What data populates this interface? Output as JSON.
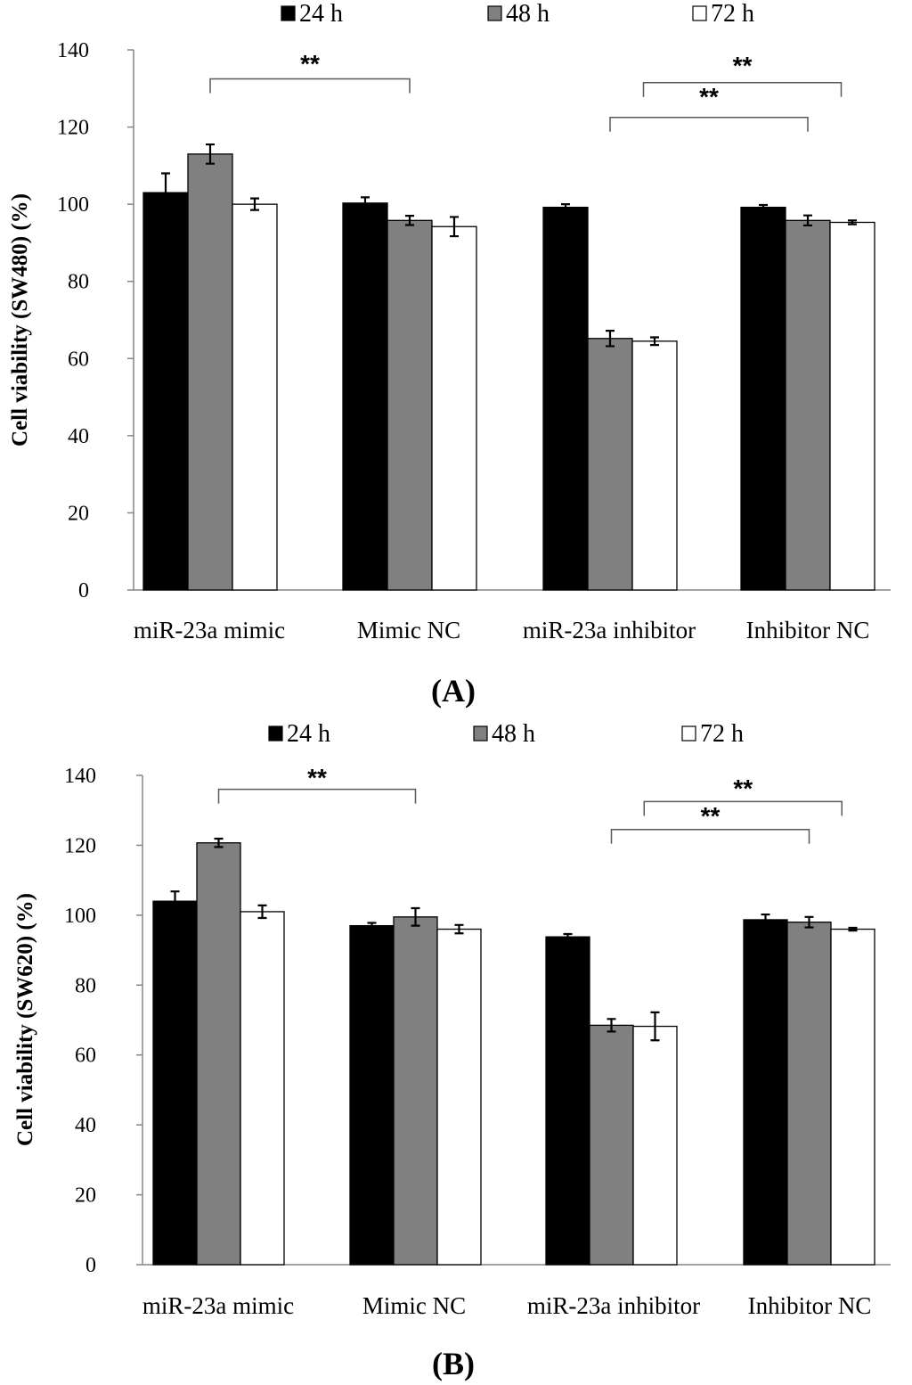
{
  "chart_data": [
    {
      "type": "bar",
      "panel_label": "(A)",
      "ylabel": "Cell viability (SW480) (%)",
      "xlabel": "",
      "ylim": [
        0,
        140
      ],
      "yticks": [
        0,
        20,
        40,
        60,
        80,
        100,
        120,
        140
      ],
      "grid": false,
      "legend_position": "top",
      "categories": [
        "miR-23a mimic",
        "Mimic NC",
        "miR-23a inhibitor",
        "Inhibitor NC"
      ],
      "series": [
        {
          "name": "24 h",
          "color": "#000000",
          "values": [
            103,
            100.3,
            99.2,
            99.2
          ],
          "errors": [
            5,
            1.5,
            0.8,
            0.6
          ]
        },
        {
          "name": "48 h",
          "color": "#808080",
          "values": [
            113,
            95.8,
            65.2,
            95.8
          ],
          "errors": [
            2.5,
            1.2,
            2.0,
            1.3
          ]
        },
        {
          "name": "72 h",
          "color": "#ffffff",
          "values": [
            100,
            94.2,
            64.5,
            95.3
          ],
          "errors": [
            1.5,
            2.5,
            1.0,
            0.5
          ]
        }
      ],
      "annotations": [
        {
          "text": "**",
          "from_category": 0,
          "to_category": 1,
          "bracket_value": 132.5,
          "label_value": 137
        },
        {
          "text": "**",
          "from_category": 2,
          "to_category": 3,
          "bracket_value": 122.5,
          "label_value": 128.5
        },
        {
          "text": "**",
          "from_category": 2.25,
          "to_category": 3.25,
          "bracket_value": 131.5,
          "label_value": 136.5
        }
      ]
    },
    {
      "type": "bar",
      "panel_label": "(B)",
      "ylabel": "Cell viability (SW620) (%)",
      "xlabel": "",
      "ylim": [
        0,
        140
      ],
      "yticks": [
        0,
        20,
        40,
        60,
        80,
        100,
        120,
        140
      ],
      "grid": false,
      "legend_position": "top",
      "categories": [
        "miR-23a mimic",
        "Mimic NC",
        "miR-23a inhibitor",
        "Inhibitor NC"
      ],
      "series": [
        {
          "name": "24 h",
          "color": "#000000",
          "values": [
            104,
            97,
            93.8,
            98.7
          ],
          "errors": [
            2.8,
            0.8,
            0.8,
            1.5
          ]
        },
        {
          "name": "48 h",
          "color": "#808080",
          "values": [
            120.7,
            99.5,
            68.5,
            98.0
          ],
          "errors": [
            1.2,
            2.5,
            1.8,
            1.5
          ]
        },
        {
          "name": "72 h",
          "color": "#ffffff",
          "values": [
            101,
            96,
            68.2,
            96
          ],
          "errors": [
            1.8,
            1.2,
            4.0,
            0.4
          ]
        }
      ],
      "annotations": [
        {
          "text": "**",
          "from_category": 0,
          "to_category": 1,
          "bracket_value": 136,
          "label_value": 140
        },
        {
          "text": "**",
          "from_category": 2,
          "to_category": 3,
          "bracket_value": 124.5,
          "label_value": 129
        },
        {
          "text": "**",
          "from_category": 2.25,
          "to_category": 3.25,
          "bracket_value": 132.5,
          "label_value": 137
        }
      ]
    }
  ]
}
